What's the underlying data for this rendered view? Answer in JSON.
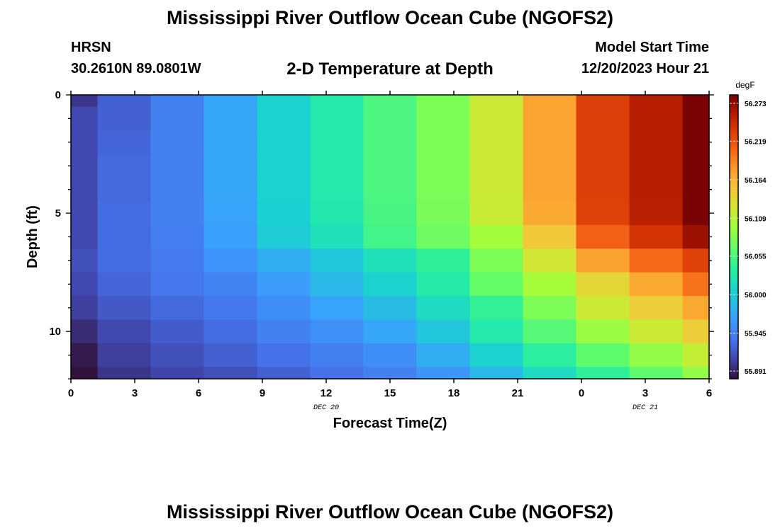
{
  "header": {
    "title": "Mississippi River Outflow Ocean Cube (NGOFS2)",
    "station": "HRSN",
    "coords": "30.2610N  89.0801W",
    "subtitle": "2-D Temperature at Depth",
    "start_label": "Model Start Time",
    "start_value": "12/20/2023 Hour 21"
  },
  "footer": {
    "title": "Mississippi River Outflow Ocean Cube (NGOFS2)"
  },
  "chart_data": {
    "type": "heatmap",
    "title": "2-D Temperature at Depth",
    "xlabel": "Forecast Time(Z)",
    "ylabel": "Depth (ft)",
    "x_ticks": [
      "0",
      "3",
      "6",
      "9",
      "12",
      "15",
      "18",
      "21",
      "0",
      "3",
      "6"
    ],
    "x_tick_hours": [
      0,
      3,
      6,
      9,
      12,
      15,
      18,
      21,
      24,
      27,
      30
    ],
    "date_labels": [
      {
        "label": "DEC 20",
        "hour": 12
      },
      {
        "label": "DEC 21",
        "hour": 27
      }
    ],
    "xlim": [
      0,
      30
    ],
    "y_ticks": [
      0,
      5,
      10
    ],
    "ylim": [
      0,
      12
    ],
    "y_direction": "down",
    "colorbar": {
      "unit": "degF",
      "min": 55.88,
      "max": 56.285,
      "ticks": [
        "56.273",
        "56.219",
        "56.164",
        "56.109",
        "56.055",
        "56.000",
        "55.945",
        "55.891"
      ]
    },
    "x_edges": [
      0,
      1.25,
      3.75,
      6.25,
      8.75,
      11.25,
      13.75,
      16.25,
      18.75,
      21.25,
      23.75,
      26.25,
      28.75,
      30
    ],
    "y_edges": [
      0,
      0.5,
      1.5,
      2.5,
      3.5,
      4.5,
      5.5,
      6.5,
      7.5,
      8.5,
      9.5,
      10.5,
      11.5,
      12
    ],
    "values": [
      [
        55.9,
        55.925,
        55.945,
        55.972,
        56.005,
        56.03,
        56.055,
        56.08,
        56.12,
        56.173,
        56.232,
        56.257,
        56.285
      ],
      [
        55.91,
        55.925,
        55.945,
        55.972,
        56.005,
        56.03,
        56.055,
        56.08,
        56.12,
        56.173,
        56.232,
        56.257,
        56.285
      ],
      [
        55.91,
        55.928,
        55.945,
        55.972,
        56.005,
        56.03,
        56.055,
        56.08,
        56.12,
        56.173,
        56.232,
        56.257,
        56.285
      ],
      [
        55.91,
        55.93,
        55.945,
        55.972,
        56.005,
        56.03,
        56.055,
        56.08,
        56.12,
        56.173,
        56.232,
        56.257,
        56.285
      ],
      [
        55.91,
        55.93,
        55.945,
        55.972,
        56.005,
        56.03,
        56.055,
        56.08,
        56.12,
        56.173,
        56.232,
        56.257,
        56.285
      ],
      [
        55.91,
        55.932,
        55.945,
        55.97,
        56.003,
        56.028,
        56.053,
        56.078,
        56.118,
        56.17,
        56.23,
        56.255,
        56.285
      ],
      [
        55.91,
        55.932,
        55.944,
        55.968,
        55.999,
        56.02,
        56.05,
        56.073,
        56.098,
        56.15,
        56.21,
        56.24,
        56.27
      ],
      [
        55.915,
        55.932,
        55.942,
        55.958,
        55.978,
        55.995,
        56.02,
        56.04,
        56.08,
        56.125,
        56.175,
        56.205,
        56.23
      ],
      [
        55.91,
        55.928,
        55.938,
        55.948,
        55.965,
        55.985,
        56.005,
        56.033,
        56.068,
        56.1,
        56.138,
        56.17,
        56.2
      ],
      [
        55.905,
        55.92,
        55.93,
        55.94,
        55.955,
        55.97,
        55.988,
        56.015,
        56.042,
        56.08,
        56.12,
        56.145,
        56.17
      ],
      [
        55.895,
        55.91,
        55.922,
        55.932,
        55.945,
        55.956,
        55.972,
        55.995,
        56.03,
        56.06,
        56.095,
        56.12,
        56.145
      ],
      [
        55.885,
        55.905,
        55.915,
        55.925,
        55.935,
        55.945,
        55.955,
        55.978,
        56.005,
        56.038,
        56.065,
        56.09,
        56.115
      ],
      [
        55.875,
        55.9,
        55.908,
        55.915,
        55.925,
        55.935,
        55.945,
        55.96,
        55.985,
        56.015,
        56.04,
        56.065,
        56.09
      ]
    ]
  }
}
